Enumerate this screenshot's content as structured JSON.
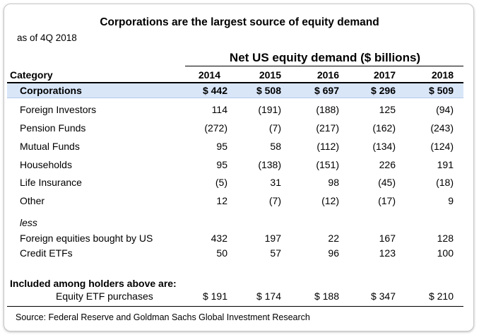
{
  "title": "Corporations are the largest source of equity demand",
  "subtitle": "as of 4Q 2018",
  "group_header": "Net US equity demand ($ billions)",
  "header": {
    "category": "Category",
    "years": [
      "2014",
      "2015",
      "2016",
      "2017",
      "2018"
    ]
  },
  "rows": [
    {
      "label": "Corporations",
      "values": [
        "$ 442",
        "$ 508",
        "$ 697",
        "$ 296",
        "$ 509"
      ]
    },
    {
      "label": "Foreign Investors",
      "values": [
        "114",
        "(191)",
        "(188)",
        "125",
        "(94)"
      ]
    },
    {
      "label": "Pension Funds",
      "values": [
        "(272)",
        "(7)",
        "(217)",
        "(162)",
        "(243)"
      ]
    },
    {
      "label": "Mutual Funds",
      "values": [
        "95",
        "58",
        "(112)",
        "(134)",
        "(124)"
      ]
    },
    {
      "label": "Households",
      "values": [
        "95",
        "(138)",
        "(151)",
        "226",
        "191"
      ]
    },
    {
      "label": "Life Insurance",
      "values": [
        "(5)",
        "31",
        "98",
        "(45)",
        "(18)"
      ]
    },
    {
      "label": "Other",
      "values": [
        "12",
        "(7)",
        "(12)",
        "(17)",
        "9"
      ]
    }
  ],
  "less_label": "less",
  "less_rows": [
    {
      "label": "Foreign equities bought by US",
      "values": [
        "432",
        "197",
        "22",
        "167",
        "128"
      ]
    },
    {
      "label": "Credit ETFs",
      "values": [
        "50",
        "57",
        "96",
        "123",
        "100"
      ]
    }
  ],
  "included_label": "Included among holders above are:",
  "etf_row": {
    "label": "Equity ETF purchases",
    "values": [
      "$ 191",
      "$ 174",
      "$ 188",
      "$ 347",
      "$ 210"
    ]
  },
  "source": "Source: Federal Reserve and Goldman Sachs Global Investment Research",
  "colors": {
    "highlight": "#d9e6f8",
    "border": "#c8c8c8"
  }
}
